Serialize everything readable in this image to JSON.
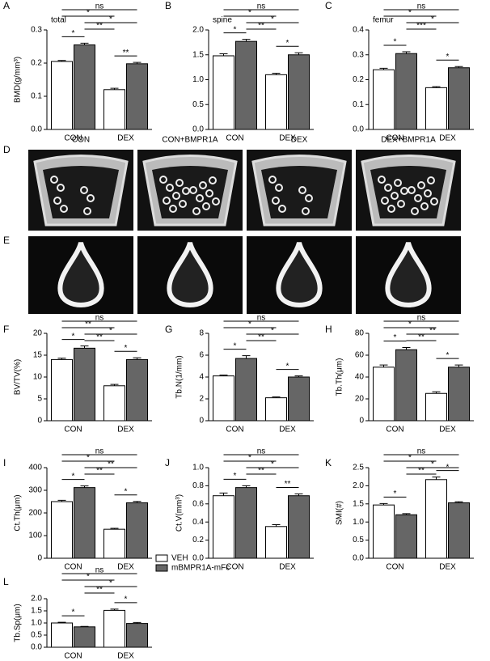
{
  "legend": [
    {
      "name": "VEH",
      "color": "#ffffff"
    },
    {
      "name": "mBMPR1A-mFc",
      "color": "#666666"
    }
  ],
  "images": {
    "panels": [
      "D",
      "E"
    ],
    "labels": [
      "CON",
      "CON+BMPR1A",
      "DEX",
      "DEX+BMPR1A"
    ]
  },
  "chart_data": [
    {
      "type": "bar",
      "panel": "A",
      "title": "total",
      "ylabel": "BMD(g/mm³)",
      "categories": [
        "CON",
        "DEX"
      ],
      "series": [
        {
          "values": [
            0.205,
            0.12
          ],
          "errors": [
            0.003,
            0.004
          ]
        },
        {
          "values": [
            0.255,
            0.198
          ],
          "errors": [
            0.005,
            0.004
          ]
        }
      ],
      "ylim": [
        0,
        0.3
      ],
      "yticks": [
        {
          "value": 0,
          "label": "0.0"
        },
        0.1,
        0.2,
        0.3
      ],
      "annotations": [
        "ns",
        "*",
        "*",
        "**",
        "*",
        "**"
      ]
    },
    {
      "type": "bar",
      "panel": "B",
      "title": "spine",
      "categories": [
        "CON",
        "DEX"
      ],
      "series": [
        {
          "values": [
            1.48,
            1.1
          ],
          "errors": [
            0.04,
            0.03
          ]
        },
        {
          "values": [
            1.77,
            1.5
          ],
          "errors": [
            0.04,
            0.04
          ]
        }
      ],
      "ylim": [
        0,
        2
      ],
      "yticks": [
        {
          "value": 0,
          "label": "0.0"
        },
        0.5,
        {
          "value": 1,
          "label": "1.0"
        },
        1.5,
        {
          "value": 2,
          "label": "2.0"
        }
      ],
      "annotations": [
        "ns",
        "*",
        "*",
        "**",
        "*",
        "*"
      ]
    },
    {
      "type": "bar",
      "panel": "C",
      "title": "femur",
      "categories": [
        "CON",
        "DEX"
      ],
      "series": [
        {
          "values": [
            0.24,
            0.168
          ],
          "errors": [
            0.006,
            0.004
          ]
        },
        {
          "values": [
            0.305,
            0.248
          ],
          "errors": [
            0.007,
            0.005
          ]
        }
      ],
      "ylim": [
        0,
        0.4
      ],
      "yticks": [
        {
          "value": 0,
          "label": "0.0"
        },
        0.1,
        0.2,
        0.3,
        0.4
      ],
      "annotations": [
        "ns",
        "*",
        "*",
        "***",
        "*",
        "*"
      ]
    },
    {
      "type": "bar",
      "panel": "F",
      "ylabel": "BV/TV(%)",
      "categories": [
        "CON",
        "DEX"
      ],
      "series": [
        {
          "values": [
            14,
            8
          ],
          "errors": [
            0.3,
            0.3
          ]
        },
        {
          "values": [
            16.6,
            14
          ],
          "errors": [
            0.5,
            0.4
          ]
        }
      ],
      "ylim": [
        0,
        20
      ],
      "yticks": [
        0,
        5,
        10,
        15,
        20
      ],
      "annotations": [
        "ns",
        "**",
        "*",
        "**",
        "*",
        "*"
      ]
    },
    {
      "type": "bar",
      "panel": "G",
      "ylabel": "Tb.N(1/mm)",
      "categories": [
        "CON",
        "DEX"
      ],
      "series": [
        {
          "values": [
            4.1,
            2.1
          ],
          "errors": [
            0.08,
            0.08
          ]
        },
        {
          "values": [
            5.7,
            4.0
          ],
          "errors": [
            0.25,
            0.1
          ]
        }
      ],
      "ylim": [
        0,
        8
      ],
      "yticks": [
        0,
        2,
        4,
        6,
        8
      ],
      "annotations": [
        "ns",
        "*",
        "*",
        "**",
        "*",
        "*"
      ]
    },
    {
      "type": "bar",
      "panel": "H",
      "ylabel": "Tb.Th(μm)",
      "categories": [
        "CON",
        "DEX"
      ],
      "series": [
        {
          "values": [
            49,
            25
          ],
          "errors": [
            2,
            1.5
          ]
        },
        {
          "values": [
            65,
            49
          ],
          "errors": [
            2,
            2
          ]
        }
      ],
      "ylim": [
        0,
        80
      ],
      "yticks": [
        0,
        20,
        40,
        60,
        80
      ],
      "annotations": [
        "ns",
        "*",
        "**",
        "**",
        "*",
        "*"
      ]
    },
    {
      "type": "bar",
      "panel": "I",
      "ylabel": "Ct.Th(μm)",
      "categories": [
        "CON",
        "DEX"
      ],
      "series": [
        {
          "values": [
            250,
            128
          ],
          "errors": [
            6,
            4
          ]
        },
        {
          "values": [
            312,
            245
          ],
          "errors": [
            7,
            6
          ]
        }
      ],
      "ylim": [
        0,
        400
      ],
      "yticks": [
        0,
        100,
        200,
        300,
        400
      ],
      "annotations": [
        "ns",
        "*",
        "**",
        "**",
        "*",
        "*"
      ]
    },
    {
      "type": "bar",
      "panel": "J",
      "ylabel": "Ct.V(mm³)",
      "categories": [
        "CON",
        "DEX"
      ],
      "series": [
        {
          "values": [
            0.69,
            0.35
          ],
          "errors": [
            0.03,
            0.02
          ]
        },
        {
          "values": [
            0.78,
            0.69
          ],
          "errors": [
            0.02,
            0.02
          ]
        }
      ],
      "ylim": [
        0,
        1
      ],
      "yticks": [
        {
          "value": 0,
          "label": "0.0"
        },
        0.2,
        0.4,
        0.6,
        0.8,
        {
          "value": 1,
          "label": "1.0"
        }
      ],
      "annotations": [
        "ns",
        "*",
        "*",
        "**",
        "*",
        "**"
      ]
    },
    {
      "type": "bar",
      "panel": "K",
      "ylabel": "SMI(#)",
      "categories": [
        "CON",
        "DEX"
      ],
      "series": [
        {
          "values": [
            1.47,
            2.17
          ],
          "errors": [
            0.04,
            0.07
          ]
        },
        {
          "values": [
            1.2,
            1.53
          ],
          "errors": [
            0.03,
            0.03
          ]
        }
      ],
      "ylim": [
        0,
        2.5
      ],
      "yticks": [
        {
          "value": 0,
          "label": "0.0"
        },
        0.5,
        {
          "value": 1,
          "label": "1.0"
        },
        1.5,
        {
          "value": 2,
          "label": "2.0"
        },
        2.5
      ],
      "annotations": [
        "ns",
        "*",
        "*",
        "**",
        "*",
        "*"
      ]
    },
    {
      "type": "bar",
      "panel": "L",
      "ylabel": "Tb.Sp(μm)",
      "categories": [
        "CON",
        "DEX"
      ],
      "series": [
        {
          "values": [
            1.0,
            1.52
          ],
          "errors": [
            0.03,
            0.05
          ]
        },
        {
          "values": [
            0.84,
            0.98
          ],
          "errors": [
            0.02,
            0.04
          ]
        }
      ],
      "ylim": [
        0,
        2
      ],
      "yticks": [
        {
          "value": 0,
          "label": "0.0"
        },
        0.5,
        {
          "value": 1,
          "label": "1.0"
        },
        1.5,
        {
          "value": 2,
          "label": "2.0"
        }
      ],
      "annotations": [
        "ns",
        "*",
        "*",
        "**",
        "*",
        "*"
      ]
    }
  ]
}
